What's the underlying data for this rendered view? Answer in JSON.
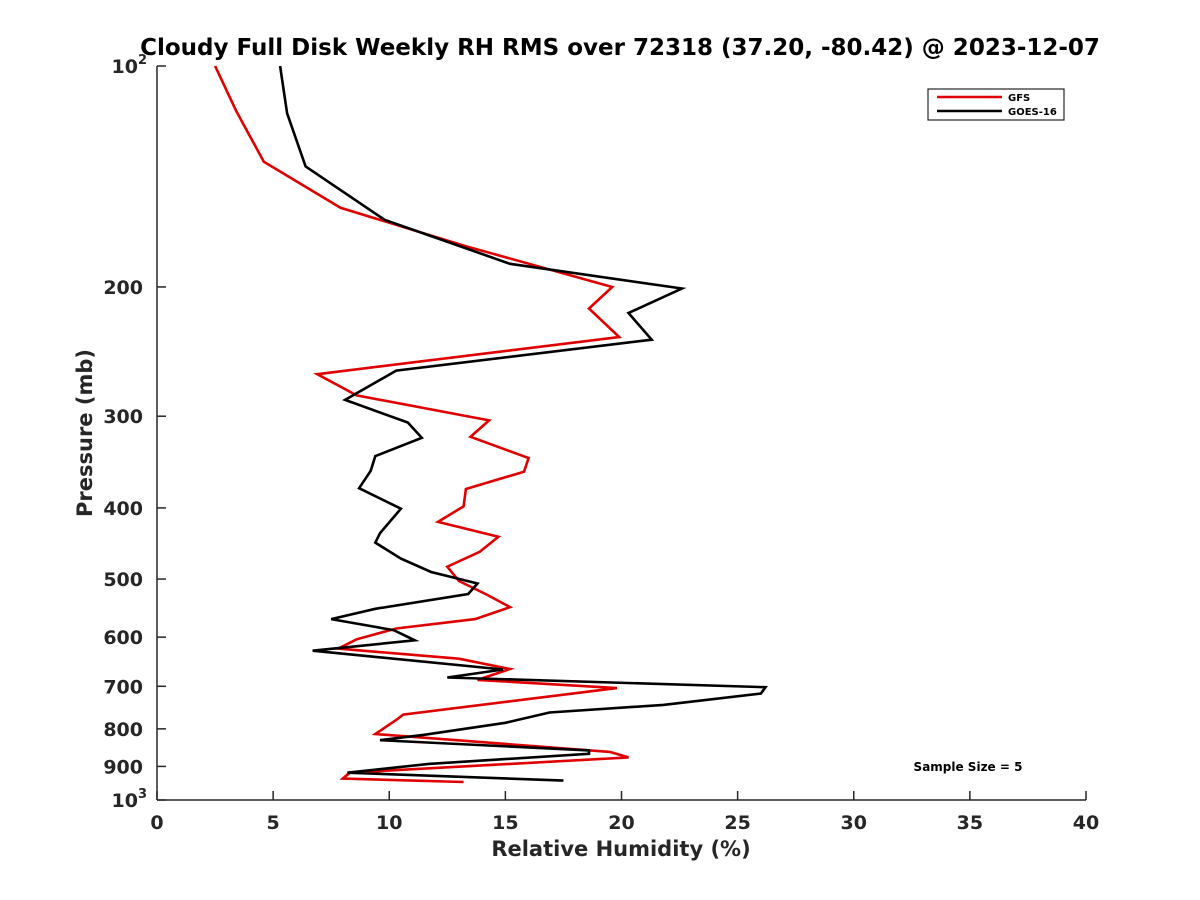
{
  "chart_data": {
    "type": "line",
    "title": "Cloudy Full Disk Weekly RH RMS over 72318 (37.20, -80.42) @ 2023-12-07",
    "xlabel": "Relative Humidity (%)",
    "ylabel": "Pressure (mb)",
    "xlim": [
      0,
      40
    ],
    "ylim": [
      100,
      1000
    ],
    "yscale": "log",
    "yreversed": true,
    "x_ticks": [
      0,
      5,
      10,
      15,
      20,
      25,
      30,
      35,
      40
    ],
    "y_ticks": [
      {
        "value": 100,
        "base": "10",
        "exp": "2"
      },
      {
        "value": 200,
        "label": "200"
      },
      {
        "value": 300,
        "label": "300"
      },
      {
        "value": 400,
        "label": "400"
      },
      {
        "value": 500,
        "label": "500"
      },
      {
        "value": 600,
        "label": "600"
      },
      {
        "value": 700,
        "label": "700"
      },
      {
        "value": 800,
        "label": "800"
      },
      {
        "value": 900,
        "label": "900"
      },
      {
        "value": 1000,
        "base": "10",
        "exp": "3"
      }
    ],
    "legend_position": "top-right",
    "annotation": "Sample Size = 5",
    "series": [
      {
        "name": "GFS",
        "color": "#e00000",
        "points": [
          [
            2.5,
            100
          ],
          [
            3.4,
            115
          ],
          [
            4.6,
            135
          ],
          [
            7.9,
            156
          ],
          [
            13.3,
            176
          ],
          [
            19.6,
            200
          ],
          [
            18.6,
            214
          ],
          [
            19.9,
            234
          ],
          [
            6.9,
            263
          ],
          [
            8.6,
            281
          ],
          [
            14.3,
            304
          ],
          [
            13.5,
            320
          ],
          [
            16.0,
            342
          ],
          [
            15.8,
            357
          ],
          [
            13.3,
            377
          ],
          [
            13.2,
            398
          ],
          [
            12.1,
            418
          ],
          [
            14.7,
            438
          ],
          [
            13.9,
            459
          ],
          [
            12.5,
            481
          ],
          [
            13.0,
            503
          ],
          [
            14.2,
            525
          ],
          [
            15.2,
            546
          ],
          [
            13.7,
            567
          ],
          [
            10.3,
            584
          ],
          [
            8.6,
            604
          ],
          [
            7.8,
            622
          ],
          [
            13.0,
            642
          ],
          [
            15.2,
            663
          ],
          [
            13.8,
            686
          ],
          [
            19.8,
            704
          ],
          [
            10.6,
            765
          ],
          [
            10.3,
            778
          ],
          [
            9.4,
            813
          ],
          [
            19.5,
            860
          ],
          [
            20.3,
            875
          ],
          [
            8.3,
            918
          ],
          [
            8.0,
            935
          ],
          [
            13.2,
            945
          ]
        ]
      },
      {
        "name": "GOES-16",
        "color": "#000000",
        "points": [
          [
            5.3,
            100
          ],
          [
            5.6,
            116
          ],
          [
            6.4,
            137
          ],
          [
            9.8,
            162
          ],
          [
            15.2,
            186
          ],
          [
            22.6,
            201
          ],
          [
            20.3,
            217
          ],
          [
            21.3,
            236
          ],
          [
            10.3,
            260
          ],
          [
            8.1,
            285
          ],
          [
            10.8,
            306
          ],
          [
            11.4,
            321
          ],
          [
            9.4,
            340
          ],
          [
            9.2,
            356
          ],
          [
            8.7,
            376
          ],
          [
            10.5,
            401
          ],
          [
            9.6,
            433
          ],
          [
            9.4,
            446
          ],
          [
            10.5,
            469
          ],
          [
            11.8,
            489
          ],
          [
            13.8,
            507
          ],
          [
            13.4,
            524
          ],
          [
            9.4,
            549
          ],
          [
            7.5,
            567
          ],
          [
            10.2,
            587
          ],
          [
            11.1,
            606
          ],
          [
            6.7,
            626
          ],
          [
            14.9,
            664
          ],
          [
            12.5,
            681
          ],
          [
            26.2,
            702
          ],
          [
            26.0,
            716
          ],
          [
            21.8,
            742
          ],
          [
            16.9,
            760
          ],
          [
            15.0,
            785
          ],
          [
            11.5,
            815
          ],
          [
            9.6,
            829
          ],
          [
            18.6,
            856
          ],
          [
            18.6,
            865
          ],
          [
            11.7,
            893
          ],
          [
            9.3,
            910
          ],
          [
            8.2,
            918
          ],
          [
            17.5,
            941
          ]
        ]
      }
    ]
  }
}
